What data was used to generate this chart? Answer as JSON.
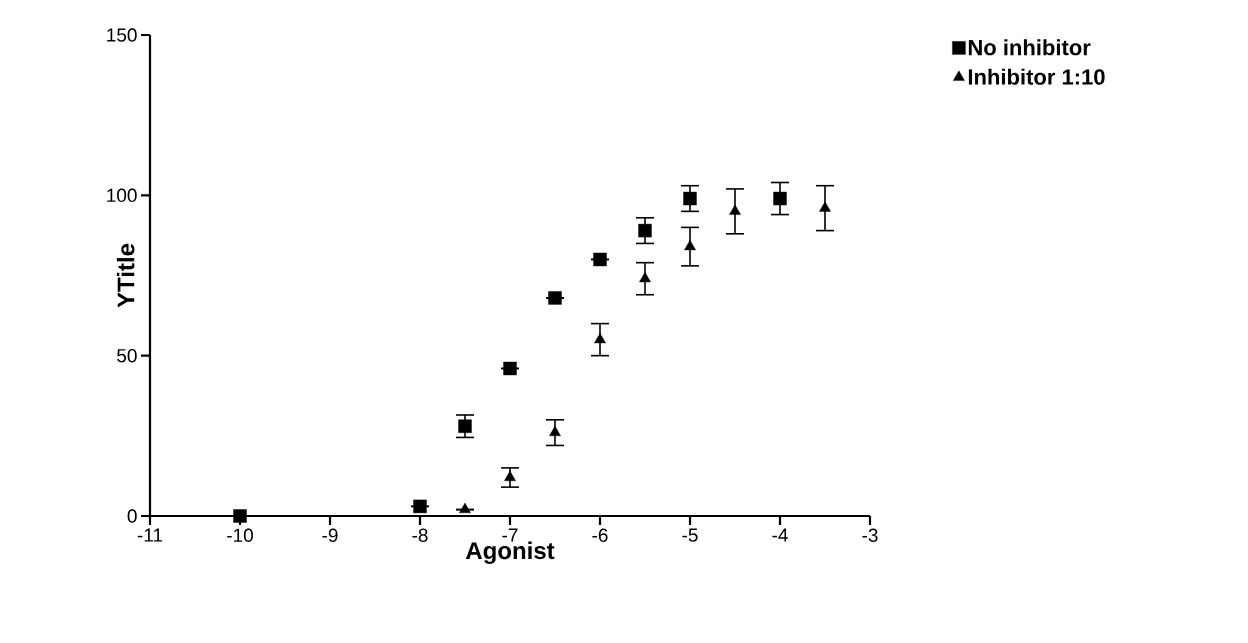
{
  "chart_data": {
    "type": "scatter",
    "xlabel": "Agonist",
    "ylabel": "YTitle",
    "xlim": [
      -11,
      -3
    ],
    "xticks": [
      -11,
      -10,
      -9,
      -8,
      -7,
      -6,
      -5,
      -4,
      -3
    ],
    "ylim": [
      0,
      150
    ],
    "yticks": [
      0,
      50,
      100,
      150
    ],
    "grid": false,
    "legend": "top right",
    "series": [
      {
        "name": "No inhibitor",
        "color": "#000000",
        "marker": "square",
        "x": [
          -10,
          -8,
          -7.5,
          -7,
          -6.5,
          -6,
          -5.5,
          -5,
          -4
        ],
        "values": [
          0,
          3,
          28,
          46,
          68,
          80,
          89,
          99,
          99
        ],
        "errors": [
          null,
          null,
          3.5,
          null,
          null,
          null,
          4,
          4,
          5
        ]
      },
      {
        "name": "Inhibitor 1:10",
        "color": "#000000",
        "marker": "triangle",
        "x": [
          -7.5,
          -7,
          -6.5,
          -6,
          -5.5,
          -5,
          -4.5,
          -3.5
        ],
        "values": [
          2,
          12,
          26,
          55,
          74,
          84,
          95,
          96
        ],
        "errors": [
          null,
          3,
          4,
          5,
          5,
          6,
          7,
          7
        ]
      }
    ]
  }
}
